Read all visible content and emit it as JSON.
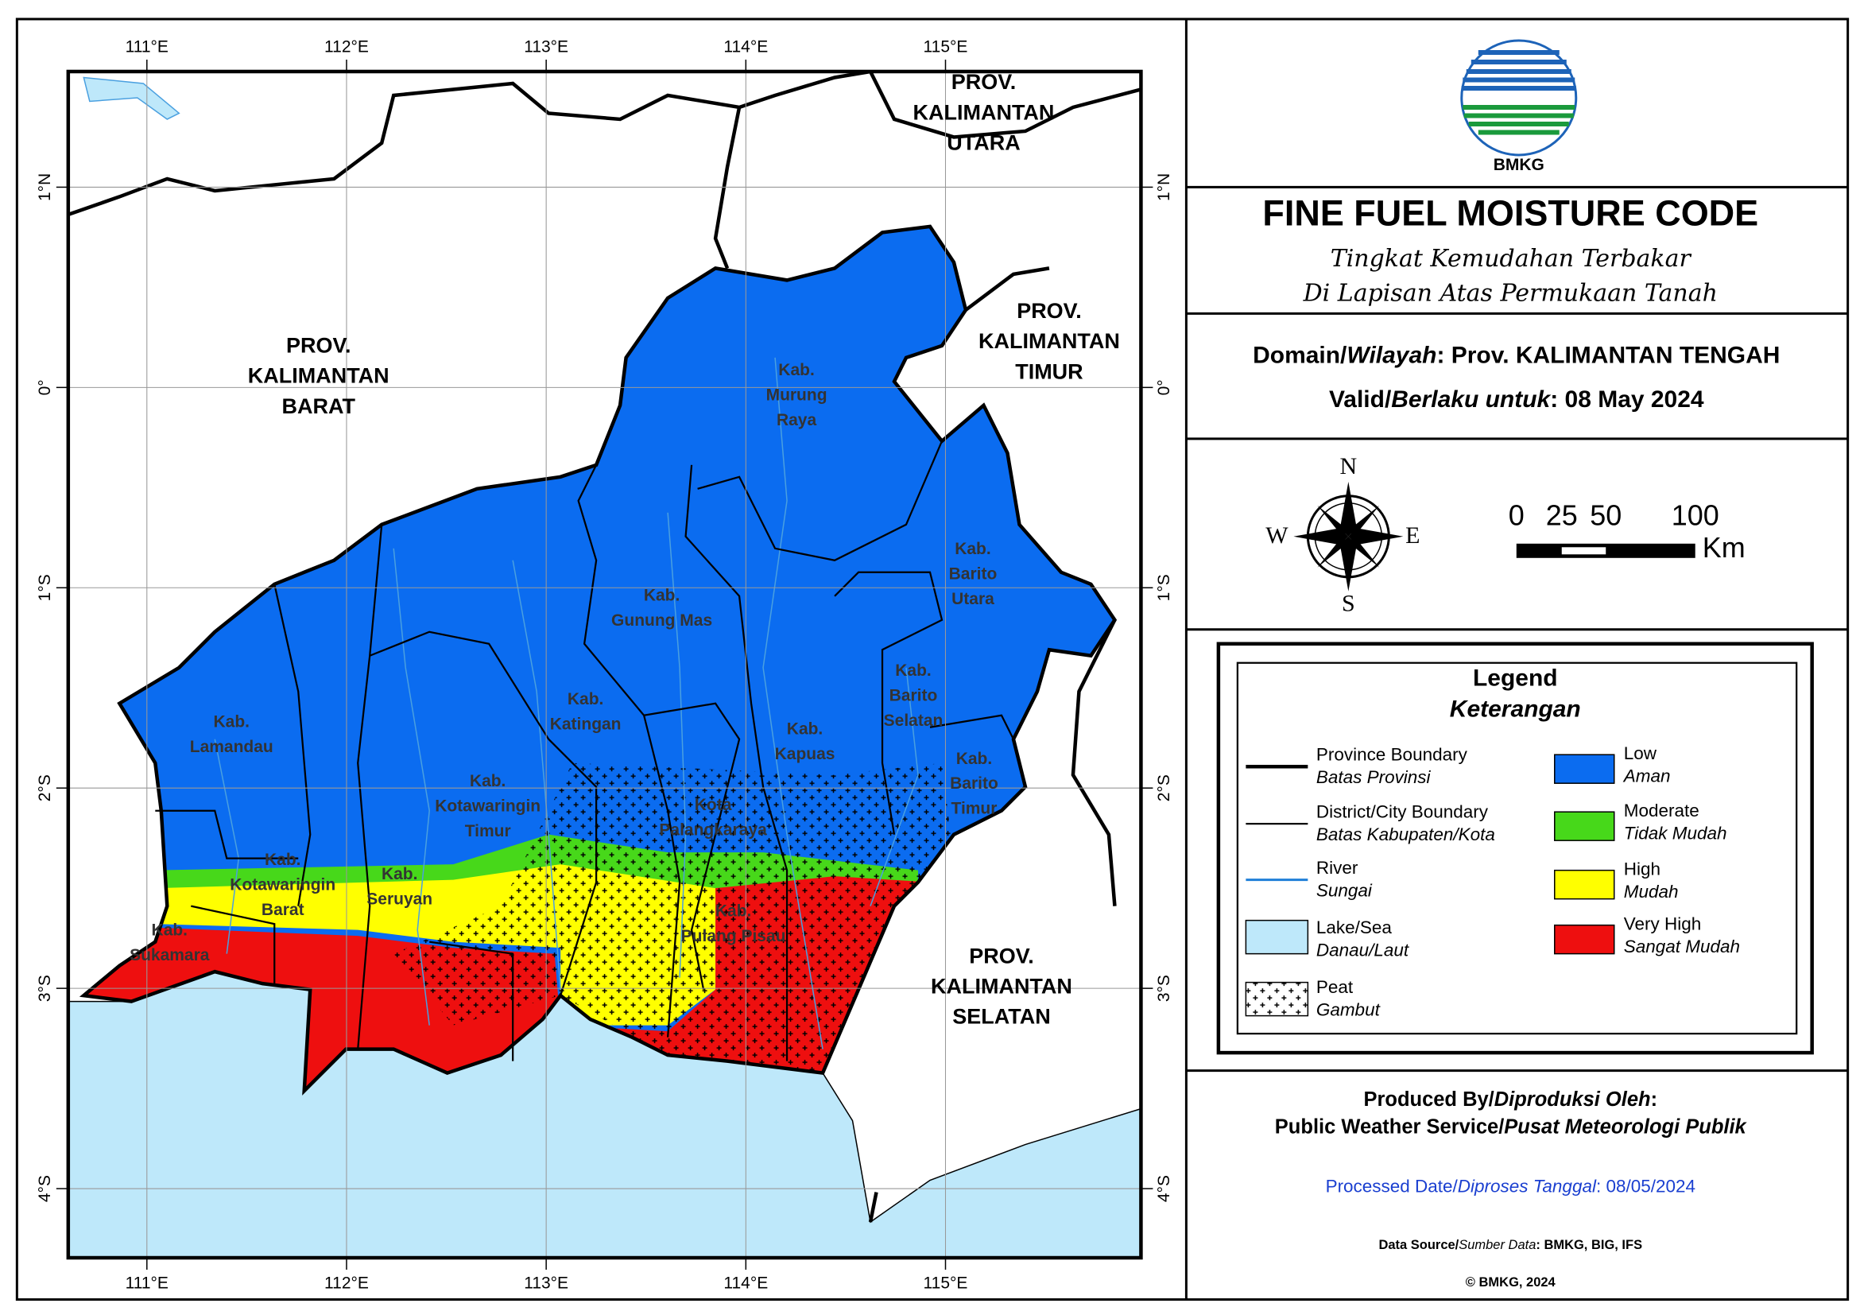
{
  "map": {
    "graticule": {
      "lon": [
        "111°E",
        "112°E",
        "113°E",
        "114°E",
        "115°E"
      ],
      "lat": [
        "1°N",
        "0°",
        "1°S",
        "2°S",
        "3°S",
        "4°S"
      ]
    },
    "regions": [
      {
        "lines": [
          "PROV.",
          "KALIMANTAN",
          "BARAT"
        ]
      },
      {
        "lines": [
          "PROV.",
          "KALIMANTAN",
          "UTARA"
        ]
      },
      {
        "lines": [
          "PROV.",
          "KALIMANTAN",
          "TIMUR"
        ]
      },
      {
        "lines": [
          "PROV.",
          "KALIMANTAN",
          "SELATAN"
        ]
      }
    ],
    "districts": [
      {
        "lines": [
          "Kab.",
          "Murung",
          "Raya"
        ]
      },
      {
        "lines": [
          "Kab.",
          "Barito",
          "Utara"
        ]
      },
      {
        "lines": [
          "Kab.",
          "Gunung Mas"
        ]
      },
      {
        "lines": [
          "Kab.",
          "Katingan"
        ]
      },
      {
        "lines": [
          "Kab.",
          "Kapuas"
        ]
      },
      {
        "lines": [
          "Kab.",
          "Barito",
          "Selatan"
        ]
      },
      {
        "lines": [
          "Kab.",
          "Barito",
          "Timur"
        ]
      },
      {
        "lines": [
          "Kab.",
          "Lamandau"
        ]
      },
      {
        "lines": [
          "Kab.",
          "Kotawaringin",
          "Timur"
        ]
      },
      {
        "lines": [
          "Kota",
          "Palangkaraya"
        ]
      },
      {
        "lines": [
          "Kab.",
          "Kotawaringin",
          "Barat"
        ]
      },
      {
        "lines": [
          "Kab.",
          "Seruyan"
        ]
      },
      {
        "lines": [
          "Kab.",
          "Pulang Pisau"
        ]
      },
      {
        "lines": [
          "Kab.",
          "Sukamara"
        ]
      }
    ]
  },
  "header": {
    "logo_text": "BMKG",
    "title": "FINE FUEL MOISTURE CODE",
    "subtitle": [
      "Tingkat Kemudahan Terbakar",
      "Di Lapisan Atas Permukaan Tanah"
    ]
  },
  "info": {
    "domain": [
      "Domain/",
      "Wilayah",
      ": Prov. KALIMANTAN TENGAH"
    ],
    "valid": [
      "Valid/",
      "Berlaku untuk",
      ": 08 May 2024"
    ]
  },
  "compass": {
    "north": "N",
    "west": "W",
    "east": "E",
    "south": "S"
  },
  "scale": {
    "ticks": [
      "0",
      "25",
      "50",
      "100"
    ],
    "unit": "Km"
  },
  "legend": {
    "title": "Legend",
    "subtitle": "Keterangan",
    "lines": [
      {
        "label": "Province Boundary",
        "label_id": "Batas Provinsi"
      },
      {
        "label": "District/City Boundary",
        "label_id": "Batas Kabupaten/Kota"
      },
      {
        "label": "River",
        "label_id": "Sungai"
      },
      {
        "label": "Lake/Sea",
        "label_id": "Danau/Laut"
      },
      {
        "label": "Peat",
        "label_id": "Gambut"
      }
    ],
    "classes": [
      {
        "label": "Low",
        "label_id": "Aman",
        "color": "#0b6cf0"
      },
      {
        "label": "Moderate",
        "label_id": "Tidak Mudah",
        "color": "#47d81a"
      },
      {
        "label": "High",
        "label_id": "Mudah",
        "color": "#ffff00"
      },
      {
        "label": "Very High",
        "label_id": "Sangat Mudah",
        "color": "#ee0f0f"
      }
    ]
  },
  "credits": {
    "produced": [
      "Produced By/",
      "Diproduksi Oleh",
      ":"
    ],
    "service": [
      "Public Weather Service/",
      "Pusat Meteorologi Publik"
    ],
    "processed": [
      "Processed Date/",
      "Diproses Tanggal",
      ": 08/05/2024"
    ],
    "source": [
      "Data Source/",
      "Sumber Data",
      ": BMKG, BIG, IFS"
    ],
    "copyright": "© BMKG, 2024"
  }
}
